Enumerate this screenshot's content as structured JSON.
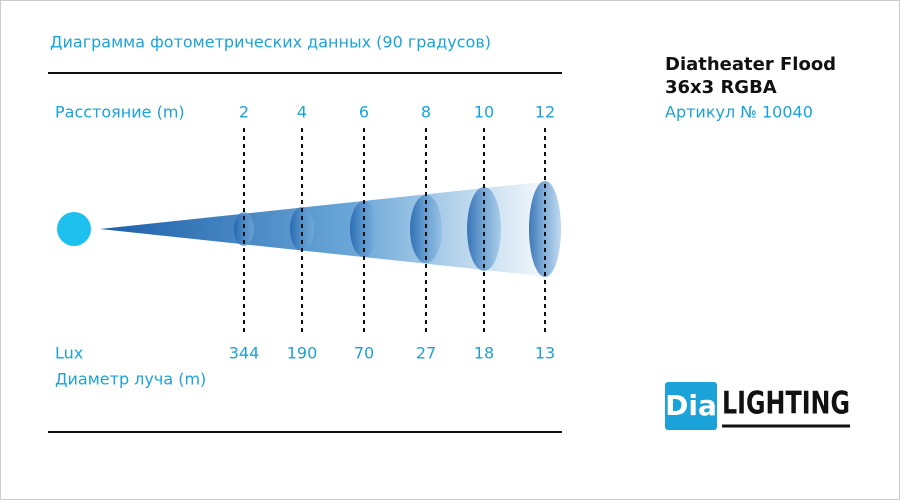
{
  "header": {
    "title": "Диаграмма фотометрических данных (90 градусов)"
  },
  "product": {
    "name_line1": "Diatheater Flood",
    "name_line2": "36x3 RGBA",
    "article": "Артикул № 10040"
  },
  "rows": {
    "distance_label": "Расстояние (m)",
    "lux_label": "Lux",
    "diameter_label": "Диаметр луча (m)"
  },
  "distances": [
    2,
    4,
    6,
    8,
    10,
    12
  ],
  "lux": [
    344,
    190,
    70,
    27,
    18,
    13
  ],
  "logo": {
    "left": "Dia",
    "right": "LIGHTING"
  }
}
